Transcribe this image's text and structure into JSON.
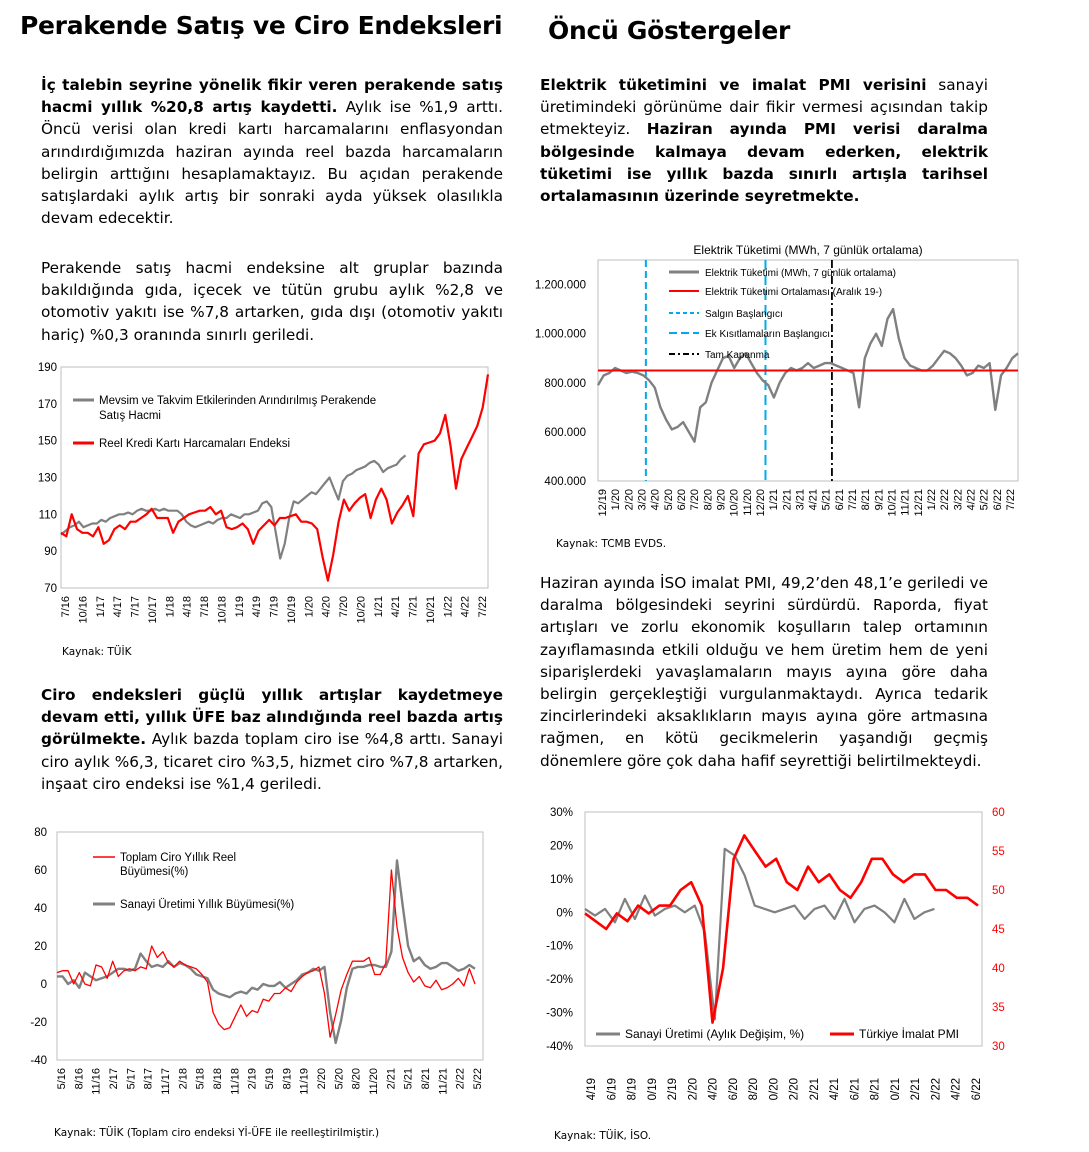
{
  "left": {
    "title": "Perakende Satış ve Ciro Endeksleri",
    "para1": {
      "bold": "İç talebin seyrine yönelik fikir veren perakende satış hacmi yıllık %20,8 artış kaydetti.",
      "normal": " Aylık ise %1,9 arttı. Öncü verisi olan kredi kartı harcamalarını enflasyondan arındırdığımızda haziran ayında reel bazda harcamaların belirgin arttığını hesaplamaktayız. Bu açıdan perakende satışlardaki aylık artış bir sonraki ayda yüksek olasılıkla devam edecektir."
    },
    "para2": "Perakende satış hacmi endeksine alt gruplar bazında bakıldığında gıda, içecek ve tütün grubu aylık %2,8 ve otomotiv yakıtı ise %7,8 artarken, gıda dışı (otomotiv yakıtı hariç) %0,3 oranında sınırlı geriledi.",
    "source1": "Kaynak: TÜİK",
    "para3": {
      "bold": "Ciro endeksleri güçlü yıllık artışlar kaydetmeye devam etti, yıllık ÜFE baz alındığında reel bazda artış görülmekte.",
      "normal": " Aylık bazda toplam ciro ise %4,8 arttı. Sanayi ciro aylık %6,3, ticaret ciro %3,5, hizmet ciro %7,8 artarken, inşaat ciro endeksi ise %1,4 geriledi."
    },
    "source2": "Kaynak: TÜİK (Toplam ciro endeksi Yİ-ÜFE ile reelleştirilmiştir.)"
  },
  "right": {
    "title": "Öncü Göstergeler",
    "para1": {
      "b1": "Elektrik tüketimini ve imalat PMI verisini",
      "n1": " sanayi üretimindeki görünüme dair fikir vermesi açısından takip etmekteyiz. ",
      "b2": "Haziran ayında PMI verisi daralma bölgesinde kalmaya devam ederken, elektrik tüketimi ise yıllık bazda sınırlı artışla tarihsel ortalamasının üzerinde seyretmekte."
    },
    "source1": "Kaynak: TCMB EVDS.",
    "para2": "Haziran ayında İSO imalat PMI, 49,2’den 48,1’e geriledi ve daralma bölgesindeki seyrini sürdürdü. Raporda, fiyat artışları ve zorlu ekonomik koşulların talep ortamının zayıflamasında etkili olduğu ve hem üretim hem de yeni siparişlerdeki yavaşlamaların mayıs ayına göre daha belirgin gerçekleştiği vurgulanmaktaydı. Ayrıca tedarik zincirlerindeki aksaklıkların mayıs ayına göre artmasına rağmen, en kötü gecikmelerin yaşandığı geçmiş dönemlere göre çok daha hafif seyrettiği belirtilmekteydi.",
    "source2": "Kaynak: TÜİK, İSO."
  },
  "chart_data": [
    {
      "type": "line",
      "title": "",
      "ylim": [
        70,
        190
      ],
      "yticks": [
        "70",
        "90",
        "110",
        "130",
        "150",
        "170",
        "190"
      ],
      "tick_labels": [
        "7/16",
        "10/16",
        "1/17",
        "4/17",
        "7/17",
        "10/17",
        "1/18",
        "4/18",
        "7/18",
        "10/18",
        "1/19",
        "4/19",
        "7/19",
        "10/19",
        "1/20",
        "4/20",
        "7/20",
        "10/20",
        "1/21",
        "4/21",
        "7/21",
        "10/21",
        "1/22",
        "4/22",
        "7/22"
      ],
      "legend": "top-left",
      "colors": [
        "#808080",
        "#ff0000"
      ],
      "series": [
        {
          "name": "Mevsim ve Takvim Etkilerinden Arındırılmış Perakende Satış Hacmi",
          "values": [
            99,
            101,
            103,
            104,
            106,
            103,
            104,
            105,
            105,
            107,
            106,
            108,
            109,
            110,
            110,
            111,
            110,
            112,
            113,
            112,
            112,
            113,
            112,
            113,
            112,
            112,
            112,
            110,
            106,
            104,
            103,
            104,
            105,
            106,
            105,
            107,
            108,
            108,
            110,
            109,
            108,
            110,
            110,
            111,
            112,
            116,
            117,
            114,
            100,
            86,
            94,
            108,
            117,
            116,
            118,
            120,
            122,
            121,
            124,
            127,
            130,
            124,
            118,
            128,
            131,
            132,
            134,
            135,
            136,
            138,
            139,
            137,
            133,
            135,
            136,
            137,
            140,
            142
          ],
          "end": 76
        },
        {
          "name": "Reel Kredi Kartı Harcamaları Endeksi",
          "values": [
            100,
            98,
            110,
            102,
            100,
            100,
            98,
            103,
            94,
            96,
            102,
            104,
            102,
            106,
            106,
            108,
            110,
            113,
            108,
            108,
            108,
            100,
            106,
            108,
            110,
            111,
            112,
            112,
            114,
            110,
            112,
            103,
            102,
            103,
            105,
            102,
            94,
            101,
            104,
            107,
            104,
            108,
            108,
            109,
            110,
            106,
            106,
            105,
            102,
            87,
            74,
            88,
            106,
            118,
            112,
            116,
            119,
            121,
            108,
            118,
            124,
            118,
            105,
            111,
            115,
            120,
            109,
            143,
            148,
            149,
            150,
            154,
            164,
            147,
            124,
            140,
            146,
            152,
            158,
            168,
            186
          ]
        }
      ]
    },
    {
      "type": "line",
      "title": "",
      "ylim": [
        -40,
        80
      ],
      "yticks": [
        "-40",
        "-20",
        "0",
        "20",
        "40",
        "60",
        "80"
      ],
      "tick_labels": [
        "5/16",
        "8/16",
        "11/16",
        "2/17",
        "5/17",
        "8/17",
        "11/17",
        "2/18",
        "5/18",
        "8/18",
        "11/18",
        "2/19",
        "5/19",
        "8/19",
        "11/19",
        "2/20",
        "5/20",
        "8/20",
        "11/20",
        "2/21",
        "5/21",
        "8/21",
        "11/21",
        "2/22",
        "5/22"
      ],
      "legend": "top-left",
      "colors": [
        "#ff0000",
        "#808080"
      ],
      "series": [
        {
          "name": "Toplam Ciro Yıllık Reel Büyümesi(%)",
          "values": [
            6,
            7,
            7,
            0,
            6,
            0,
            -1,
            10,
            9,
            3,
            12,
            4,
            7,
            8,
            7,
            9,
            8,
            20,
            14,
            17,
            11,
            9,
            12,
            10,
            9,
            8,
            5,
            1,
            -15,
            -21,
            -24,
            -23,
            -17,
            -11,
            -17,
            -14,
            -15,
            -8,
            -9,
            -5,
            -5,
            -2,
            -4,
            1,
            4,
            6,
            7,
            9,
            -5,
            -28,
            -16,
            -3,
            5,
            12,
            12,
            12,
            14,
            5,
            5,
            11,
            60,
            30,
            14,
            6,
            1,
            4,
            -1,
            -2,
            2,
            -3,
            -2,
            0,
            3,
            -1,
            8,
            0
          ],
          "end": 60
        },
        {
          "name": "Sanayi Üretimi Yıllık Büyümesi(%)",
          "values": [
            4,
            4,
            0,
            2,
            -2,
            6,
            4,
            2,
            3,
            4,
            6,
            8,
            8,
            7,
            8,
            16,
            12,
            9,
            10,
            9,
            12,
            9,
            11,
            10,
            8,
            5,
            4,
            3,
            -3,
            -5,
            -6,
            -7,
            -5,
            -4,
            -5,
            -2,
            -3,
            0,
            -1,
            -1,
            1,
            -2,
            0,
            2,
            5,
            6,
            8,
            7,
            9,
            -15,
            -31,
            -19,
            -2,
            8,
            9,
            9,
            10,
            10,
            9,
            9,
            17,
            65,
            42,
            20,
            12,
            14,
            10,
            8,
            9,
            11,
            11,
            9,
            7,
            8,
            10,
            8
          ]
        }
      ]
    },
    {
      "type": "line",
      "title": "Elektrik Tüketimi (MWh, 7 günlük ortalama)",
      "ylim": [
        400000,
        1300000
      ],
      "yticks": [
        "400.000",
        "600.000",
        "800.000",
        "1.000.000",
        "1.200.000"
      ],
      "tick_labels": [
        "12/19",
        "1/20",
        "2/20",
        "3/20",
        "4/20",
        "5/20",
        "6/20",
        "7/20",
        "8/20",
        "9/20",
        "10/20",
        "11/20",
        "12/20",
        "1/21",
        "2/21",
        "3/21",
        "4/21",
        "5/21",
        "6/21",
        "7/21",
        "8/21",
        "9/21",
        "10/21",
        "11/21",
        "12/21",
        "1/22",
        "2/22",
        "3/22",
        "4/22",
        "5/22",
        "6/22",
        "7/22"
      ],
      "legend": "top-left",
      "series": [
        {
          "name": "Elektrik Tüketimi (MWh, 7 günlük ortalama)",
          "color": "#808080",
          "values": [
            790000,
            830000,
            840000,
            860000,
            850000,
            840000,
            845000,
            840000,
            830000,
            810000,
            780000,
            700000,
            650000,
            610000,
            620000,
            640000,
            600000,
            560000,
            700000,
            720000,
            800000,
            850000,
            900000,
            910000,
            860000,
            900000,
            920000,
            880000,
            840000,
            810000,
            790000,
            740000,
            800000,
            840000,
            860000,
            850000,
            860000,
            880000,
            860000,
            870000,
            880000,
            880000,
            870000,
            860000,
            850000,
            840000,
            700000,
            900000,
            960000,
            1000000,
            950000,
            1060000,
            1100000,
            980000,
            900000,
            870000,
            860000,
            850000,
            850000,
            870000,
            900000,
            930000,
            920000,
            900000,
            870000,
            830000,
            840000,
            870000,
            860000,
            880000,
            690000,
            830000,
            860000,
            900000,
            920000
          ]
        },
        {
          "name": "Elektrik Tüketimi Ortalaması (Aralık 19-)",
          "color": "#ff0000",
          "values": [
            850000
          ]
        },
        {
          "name": "Salgın Başlangıcı",
          "color": "#00aaee",
          "x": "3/20"
        },
        {
          "name": "Ek Kısıtlamaların Başlangıcı",
          "color": "#00aaee",
          "x": "12/20"
        },
        {
          "name": "Tam Kapanma",
          "color": "#000000",
          "x": "5/21"
        }
      ]
    },
    {
      "type": "line",
      "title": "",
      "ylim": [
        -40,
        30
      ],
      "y2lim": [
        30,
        60
      ],
      "yticks": [
        "-40%",
        "-30%",
        "-20%",
        "-10%",
        "0%",
        "10%",
        "20%",
        "30%"
      ],
      "y2ticks": [
        "30",
        "35",
        "40",
        "45",
        "50",
        "55",
        "60"
      ],
      "tick_labels": [
        "4/19",
        "6/19",
        "8/19",
        "10/19",
        "12/19",
        "2/20",
        "4/20",
        "6/20",
        "8/20",
        "10/20",
        "12/20",
        "2/21",
        "4/21",
        "6/21",
        "8/21",
        "10/21",
        "12/21",
        "2/22",
        "4/22",
        "6/22"
      ],
      "legend": "bottom",
      "colors": [
        "#808080",
        "#ff0000"
      ],
      "series": [
        {
          "name": "Sanayi Üretimi (Aylık Değişim, %)",
          "axis": "left",
          "values": [
            1,
            -1,
            1,
            -3,
            4,
            -2,
            5,
            -1,
            1,
            2,
            0,
            2,
            -6,
            -32,
            19,
            17,
            11,
            2,
            1,
            0,
            1,
            2,
            -2,
            1,
            2,
            -2,
            4,
            -3,
            1,
            2,
            0,
            -3,
            4,
            -2,
            0,
            1
          ]
        },
        {
          "name": "Türkiye İmalat PMI",
          "axis": "right",
          "values": [
            47,
            46,
            45,
            47,
            46,
            48,
            47,
            48,
            48,
            50,
            51,
            48,
            33,
            40,
            54,
            57,
            55,
            53,
            54,
            51,
            50,
            53,
            51,
            52,
            50,
            49,
            51,
            54,
            54,
            52,
            51,
            52,
            52,
            50,
            50,
            49,
            49,
            48
          ]
        }
      ]
    }
  ]
}
